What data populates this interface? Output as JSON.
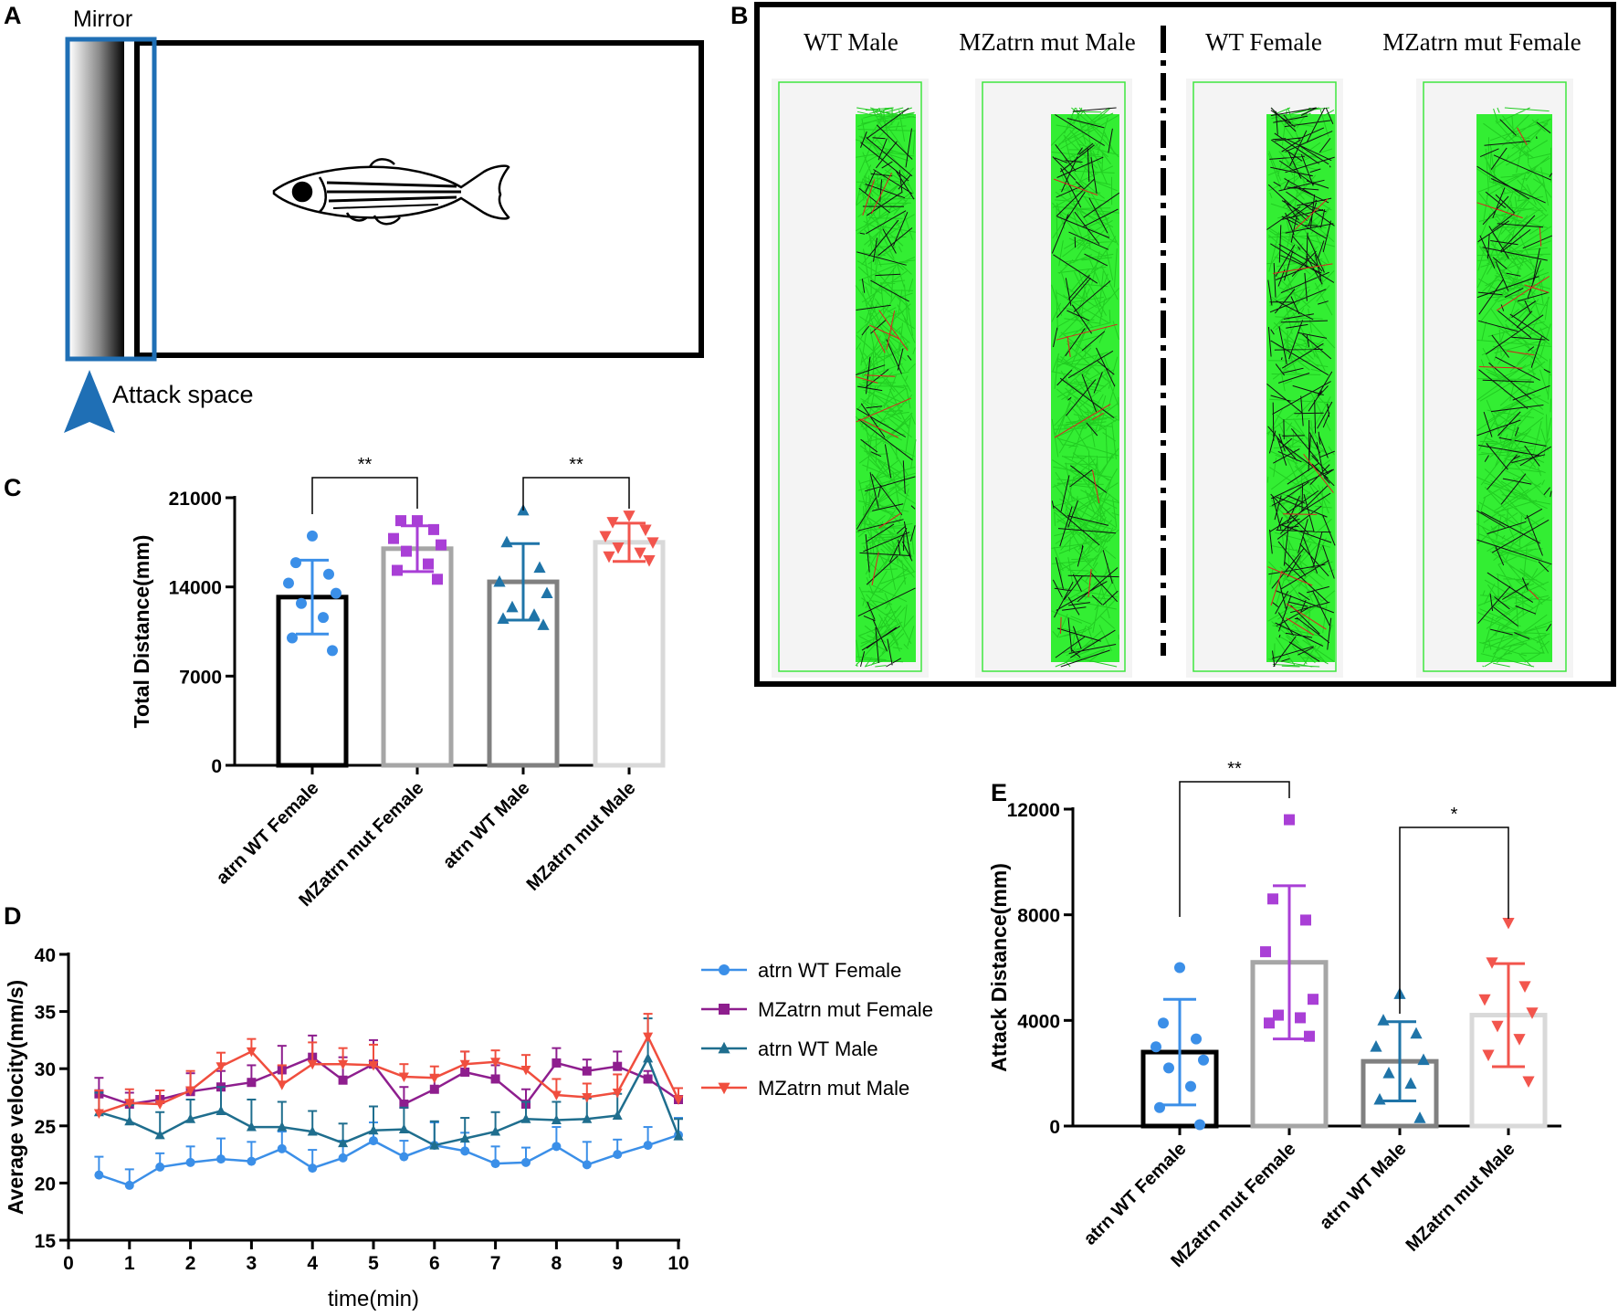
{
  "panels": {
    "a": {
      "label": "A",
      "mirror_label": "Mirror",
      "attack_label": "Attack space"
    },
    "b": {
      "label": "B",
      "titles": [
        "WT Male",
        "MZatrn mut Male",
        "WT Female",
        "MZatrn mut Female"
      ]
    },
    "c": {
      "label": "C"
    },
    "d": {
      "label": "D"
    },
    "e": {
      "label": "E"
    }
  },
  "chart_data": [
    {
      "id": "C",
      "type": "bar",
      "ylabel": "Total Distance(mm)",
      "ylim": [
        0,
        21000
      ],
      "yticks": [
        0,
        7000,
        14000,
        21000
      ],
      "categories": [
        "atrn WT Female",
        "MZatrn mut Female",
        "atrn WT Male",
        "MZatrn mut Male"
      ],
      "colors": [
        "#000000",
        "#a6a6a6",
        "#808080",
        "#d9d9d9"
      ],
      "dot_colors": [
        "#3b8fe8",
        "#a93fd6",
        "#1f74a8",
        "#f2554d"
      ],
      "markers": [
        "circle",
        "square",
        "triangle",
        "triangle-down"
      ],
      "values": [
        13200,
        17000,
        14400,
        17500
      ],
      "sd": [
        2900,
        1800,
        3000,
        1500
      ],
      "points": [
        [
          18000,
          15900,
          15000,
          14300,
          13500,
          12700,
          11600,
          10000,
          9000
        ],
        [
          19200,
          19200,
          18500,
          17800,
          17300,
          16800,
          15800,
          15300,
          14600
        ],
        [
          20000,
          17500,
          15500,
          14400,
          13500,
          12400,
          11800,
          11500,
          11000
        ],
        [
          19600,
          19100,
          18500,
          18000,
          17500,
          17100,
          16700,
          16400,
          16100
        ]
      ],
      "significance": [
        {
          "from": 0,
          "to": 1,
          "label": "**"
        },
        {
          "from": 2,
          "to": 3,
          "label": "**"
        }
      ]
    },
    {
      "id": "D",
      "type": "line",
      "xlabel": "time(min)",
      "ylabel": "Average velocity(mm/s)",
      "xlim": [
        0,
        10
      ],
      "ylim": [
        15,
        40
      ],
      "xticks": [
        0,
        1,
        2,
        3,
        4,
        5,
        6,
        7,
        8,
        9,
        10
      ],
      "yticks": [
        15,
        20,
        25,
        30,
        35,
        40
      ],
      "x": [
        0.5,
        1,
        1.5,
        2,
        2.5,
        3,
        3.5,
        4,
        4.5,
        5,
        5.5,
        6,
        6.5,
        7,
        7.5,
        8,
        8.5,
        9,
        9.5,
        10
      ],
      "series": [
        {
          "name": "atrn WT Female",
          "color": "#3b8fe8",
          "marker": "circle",
          "values": [
            20.7,
            19.8,
            21.4,
            21.8,
            22.1,
            21.9,
            23.0,
            21.3,
            22.2,
            23.7,
            22.3,
            23.3,
            22.8,
            21.7,
            21.8,
            23.2,
            21.6,
            22.5,
            23.3,
            24.2
          ],
          "err": [
            1.6,
            1.4,
            1.2,
            1.4,
            1.8,
            1.7,
            1.5,
            1.6,
            1.5,
            1.6,
            1.4,
            2.0,
            1.6,
            1.5,
            1.3,
            1.7,
            2.0,
            1.3,
            1.6,
            1.5
          ]
        },
        {
          "name": "MZatrn mut Female",
          "color": "#8e1e8e",
          "marker": "square",
          "values": [
            27.8,
            26.9,
            27.3,
            28.0,
            28.4,
            28.8,
            29.9,
            31.0,
            29.0,
            30.4,
            26.9,
            28.2,
            29.7,
            29.1,
            26.9,
            30.5,
            29.8,
            30.2,
            29.1,
            27.3
          ],
          "err": [
            1.4,
            1.0,
            0.8,
            1.6,
            1.4,
            1.5,
            2.1,
            1.9,
            2.0,
            2.1,
            1.5,
            1.2,
            1.8,
            1.2,
            1.3,
            1.3,
            1.0,
            1.3,
            0.7,
            1.0
          ]
        },
        {
          "name": "atrn WT Male",
          "color": "#1f6e8e",
          "marker": "triangle",
          "values": [
            26.2,
            25.4,
            24.2,
            25.6,
            26.3,
            24.9,
            24.9,
            24.5,
            23.5,
            24.6,
            24.7,
            23.3,
            23.9,
            24.5,
            25.6,
            25.5,
            25.6,
            25.9,
            30.9,
            24.1
          ],
          "err": [
            1.7,
            1.4,
            2.0,
            1.7,
            2.1,
            2.4,
            2.2,
            1.8,
            1.7,
            2.1,
            1.9,
            2.1,
            1.8,
            1.7,
            1.5,
            1.6,
            1.8,
            1.9,
            3.5,
            1.5
          ]
        },
        {
          "name": "MZatrn mut Male",
          "color": "#f04e3e",
          "marker": "triangle-down",
          "values": [
            26.1,
            27.0,
            26.9,
            28.1,
            30.2,
            31.5,
            28.6,
            30.4,
            30.4,
            30.3,
            29.3,
            29.2,
            30.4,
            30.6,
            29.9,
            27.7,
            27.5,
            27.9,
            32.8,
            27.3
          ],
          "err": [
            2.0,
            1.2,
            1.2,
            1.7,
            1.2,
            1.1,
            1.7,
            1.9,
            1.4,
            1.8,
            1.1,
            1.0,
            1.1,
            1.0,
            1.3,
            1.4,
            1.2,
            1.6,
            2.0,
            1.0
          ]
        }
      ]
    },
    {
      "id": "E",
      "type": "bar",
      "ylabel": "Attack Distance(mm)",
      "ylim": [
        0,
        12000
      ],
      "yticks": [
        0,
        4000,
        8000,
        12000
      ],
      "categories": [
        "atrn WT Female",
        "MZatrn mut Female",
        "atrn WT Male",
        "MZatrn mut Male"
      ],
      "colors": [
        "#000000",
        "#a6a6a6",
        "#808080",
        "#d9d9d9"
      ],
      "dot_colors": [
        "#3b8fe8",
        "#a93fd6",
        "#1f74a8",
        "#f2554d"
      ],
      "markers": [
        "circle",
        "square",
        "triangle",
        "triangle-down"
      ],
      "values": [
        2800,
        6200,
        2450,
        4200
      ],
      "sd": [
        2000,
        2900,
        1500,
        1950
      ],
      "points": [
        [
          6000,
          3900,
          3300,
          3000,
          2500,
          2200,
          1500,
          700,
          50
        ],
        [
          11600,
          8600,
          7800,
          6600,
          4800,
          4200,
          4100,
          3900,
          3400
        ],
        [
          5000,
          4000,
          3500,
          3000,
          2500,
          2000,
          1600,
          1000,
          300
        ],
        [
          7700,
          6200,
          5300,
          4800,
          4300,
          3800,
          3300,
          2700,
          1700
        ]
      ],
      "significance": [
        {
          "from": 0,
          "to": 1,
          "label": "**"
        },
        {
          "from": 2,
          "to": 3,
          "label": "*"
        }
      ]
    }
  ]
}
